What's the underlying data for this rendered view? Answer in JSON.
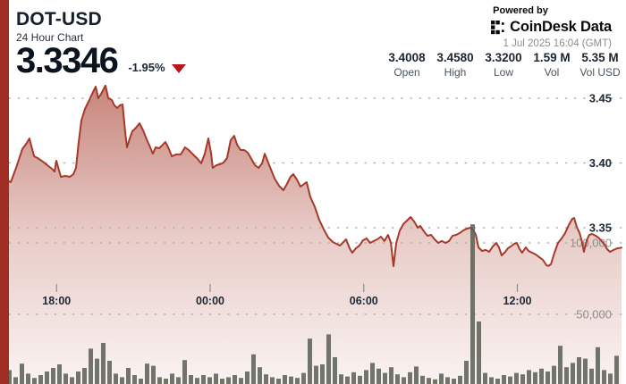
{
  "header": {
    "symbol": "DOT-USD",
    "subtitle": "24 Hour Chart",
    "price": "3.3346",
    "change_pct": "-1.95%",
    "change_direction": "down",
    "powered_by": "Powered by",
    "brand": "CoinDesk Data",
    "timestamp": "1 Jul 2025 16:04 (GMT)"
  },
  "stats": [
    {
      "value": "3.4008",
      "label": "Open"
    },
    {
      "value": "3.4580",
      "label": "High"
    },
    {
      "value": "3.3200",
      "label": "Low"
    },
    {
      "value": "1.59 M",
      "label": "Vol"
    },
    {
      "value": "5.35 M",
      "label": "Vol USD"
    }
  ],
  "colors": {
    "accent_red": "#9f2d23",
    "line_red": "#a63a2a",
    "volume_bar": "#595e52",
    "down_red": "#b7161b"
  },
  "chart_data": {
    "type": "area",
    "title": "DOT-USD 24 Hour Chart",
    "price_axis": {
      "ticks": [
        3.45,
        3.4,
        3.35
      ],
      "labels": [
        "3.45",
        "3.40",
        "3.35"
      ]
    },
    "volume_axis": {
      "ticks": [
        100000,
        50000
      ],
      "labels": [
        "100,000",
        "50,000"
      ]
    },
    "time_ticks": [
      {
        "t": 1.93,
        "label": "18:00"
      },
      {
        "t": 7.93,
        "label": "00:00"
      },
      {
        "t": 13.93,
        "label": "06:00"
      },
      {
        "t": 19.93,
        "label": "12:00"
      }
    ],
    "price_series": [
      [
        0.0,
        3.3866
      ],
      [
        0.14,
        3.3852
      ],
      [
        0.35,
        3.3962
      ],
      [
        0.59,
        3.4107
      ],
      [
        0.77,
        3.4155
      ],
      [
        0.87,
        3.419
      ],
      [
        1.05,
        3.4052
      ],
      [
        1.19,
        3.4038
      ],
      [
        1.4,
        3.401
      ],
      [
        1.57,
        3.3983
      ],
      [
        1.75,
        3.3955
      ],
      [
        1.85,
        3.3934
      ],
      [
        1.92,
        3.4017
      ],
      [
        2.03,
        3.3941
      ],
      [
        2.1,
        3.3893
      ],
      [
        2.27,
        3.39
      ],
      [
        2.45,
        3.3893
      ],
      [
        2.59,
        3.3914
      ],
      [
        2.69,
        3.3962
      ],
      [
        2.79,
        3.4155
      ],
      [
        2.9,
        3.4328
      ],
      [
        3.04,
        3.4417
      ],
      [
        3.21,
        3.4486
      ],
      [
        3.32,
        3.4534
      ],
      [
        3.46,
        3.459
      ],
      [
        3.56,
        3.45
      ],
      [
        3.67,
        3.4534
      ],
      [
        3.84,
        3.4597
      ],
      [
        3.95,
        3.45
      ],
      [
        4.09,
        3.4486
      ],
      [
        4.19,
        3.4445
      ],
      [
        4.3,
        3.4424
      ],
      [
        4.4,
        3.4445
      ],
      [
        4.51,
        3.4452
      ],
      [
        4.61,
        3.4238
      ],
      [
        4.68,
        3.4121
      ],
      [
        4.79,
        3.419
      ],
      [
        4.89,
        3.4245
      ],
      [
        5.03,
        3.4272
      ],
      [
        5.17,
        3.4307
      ],
      [
        5.31,
        3.4252
      ],
      [
        5.45,
        3.4183
      ],
      [
        5.59,
        3.4121
      ],
      [
        5.69,
        3.4072
      ],
      [
        5.8,
        3.4121
      ],
      [
        5.94,
        3.4114
      ],
      [
        6.08,
        3.4141
      ],
      [
        6.18,
        3.4162
      ],
      [
        6.29,
        3.4121
      ],
      [
        6.43,
        3.4052
      ],
      [
        6.6,
        3.4066
      ],
      [
        6.78,
        3.4066
      ],
      [
        6.95,
        3.4121
      ],
      [
        7.09,
        3.41
      ],
      [
        7.23,
        3.4072
      ],
      [
        7.41,
        3.4038
      ],
      [
        7.58,
        3.3997
      ],
      [
        7.72,
        3.4072
      ],
      [
        7.86,
        3.419
      ],
      [
        7.97,
        3.4072
      ],
      [
        8.03,
        3.3962
      ],
      [
        8.17,
        3.3983
      ],
      [
        8.31,
        3.399
      ],
      [
        8.45,
        3.4003
      ],
      [
        8.59,
        3.4038
      ],
      [
        8.73,
        3.4176
      ],
      [
        8.87,
        3.421
      ],
      [
        8.98,
        3.4141
      ],
      [
        9.12,
        3.41
      ],
      [
        9.26,
        3.41
      ],
      [
        9.4,
        3.4079
      ],
      [
        9.54,
        3.4031
      ],
      [
        9.68,
        3.3983
      ],
      [
        9.82,
        3.3962
      ],
      [
        9.96,
        3.3997
      ],
      [
        10.06,
        3.4072
      ],
      [
        10.17,
        3.4017
      ],
      [
        10.31,
        3.3948
      ],
      [
        10.45,
        3.3879
      ],
      [
        10.62,
        3.3824
      ],
      [
        10.79,
        3.379
      ],
      [
        10.93,
        3.3838
      ],
      [
        11.07,
        3.3893
      ],
      [
        11.18,
        3.3914
      ],
      [
        11.32,
        3.3872
      ],
      [
        11.46,
        3.3817
      ],
      [
        11.6,
        3.3838
      ],
      [
        11.7,
        3.3852
      ],
      [
        11.84,
        3.3741
      ],
      [
        12.02,
        3.3659
      ],
      [
        12.19,
        3.3562
      ],
      [
        12.37,
        3.3486
      ],
      [
        12.54,
        3.3424
      ],
      [
        12.72,
        3.339
      ],
      [
        12.86,
        3.3376
      ],
      [
        13.0,
        3.3362
      ],
      [
        13.14,
        3.339
      ],
      [
        13.24,
        3.341
      ],
      [
        13.38,
        3.3341
      ],
      [
        13.48,
        3.3307
      ],
      [
        13.62,
        3.3341
      ],
      [
        13.76,
        3.3362
      ],
      [
        13.9,
        3.3403
      ],
      [
        14.04,
        3.3417
      ],
      [
        14.18,
        3.3383
      ],
      [
        14.32,
        3.3397
      ],
      [
        14.46,
        3.341
      ],
      [
        14.6,
        3.3431
      ],
      [
        14.74,
        3.3397
      ],
      [
        14.88,
        3.3445
      ],
      [
        14.99,
        3.3383
      ],
      [
        15.09,
        3.3203
      ],
      [
        15.2,
        3.3383
      ],
      [
        15.34,
        3.3479
      ],
      [
        15.48,
        3.3528
      ],
      [
        15.62,
        3.3555
      ],
      [
        15.76,
        3.3583
      ],
      [
        15.9,
        3.3548
      ],
      [
        16.04,
        3.35
      ],
      [
        16.14,
        3.3514
      ],
      [
        16.28,
        3.3472
      ],
      [
        16.42,
        3.3438
      ],
      [
        16.56,
        3.3445
      ],
      [
        16.7,
        3.341
      ],
      [
        16.84,
        3.3383
      ],
      [
        16.98,
        3.3397
      ],
      [
        17.12,
        3.3383
      ],
      [
        17.26,
        3.3397
      ],
      [
        17.4,
        3.3438
      ],
      [
        17.54,
        3.3445
      ],
      [
        17.68,
        3.3459
      ],
      [
        17.82,
        3.3479
      ],
      [
        17.96,
        3.3493
      ],
      [
        18.1,
        3.35
      ],
      [
        18.2,
        3.3486
      ],
      [
        18.31,
        3.3445
      ],
      [
        18.41,
        3.3348
      ],
      [
        18.55,
        3.3321
      ],
      [
        18.69,
        3.3328
      ],
      [
        18.83,
        3.3314
      ],
      [
        18.97,
        3.3355
      ],
      [
        19.11,
        3.3383
      ],
      [
        19.21,
        3.3348
      ],
      [
        19.32,
        3.3286
      ],
      [
        19.46,
        3.3314
      ],
      [
        19.56,
        3.3341
      ],
      [
        19.67,
        3.3355
      ],
      [
        19.81,
        3.3376
      ],
      [
        19.91,
        3.3383
      ],
      [
        20.02,
        3.3334
      ],
      [
        20.12,
        3.3307
      ],
      [
        20.26,
        3.3348
      ],
      [
        20.37,
        3.3321
      ],
      [
        20.51,
        3.3307
      ],
      [
        20.65,
        3.3293
      ],
      [
        20.79,
        3.3272
      ],
      [
        20.93,
        3.3252
      ],
      [
        21.07,
        3.321
      ],
      [
        21.14,
        3.3205
      ],
      [
        21.24,
        3.3217
      ],
      [
        21.38,
        3.3307
      ],
      [
        21.52,
        3.3383
      ],
      [
        21.66,
        3.3417
      ],
      [
        21.8,
        3.3459
      ],
      [
        21.94,
        3.3521
      ],
      [
        22.08,
        3.3569
      ],
      [
        22.15,
        3.3576
      ],
      [
        22.25,
        3.3507
      ],
      [
        22.36,
        3.3459
      ],
      [
        22.46,
        3.339
      ],
      [
        22.53,
        3.3314
      ],
      [
        22.64,
        3.3403
      ],
      [
        22.74,
        3.3445
      ],
      [
        22.85,
        3.3452
      ],
      [
        22.99,
        3.3438
      ],
      [
        23.09,
        3.3424
      ],
      [
        23.2,
        3.3403
      ],
      [
        23.34,
        3.3369
      ],
      [
        23.44,
        3.3334
      ],
      [
        23.55,
        3.3314
      ],
      [
        23.69,
        3.3328
      ],
      [
        23.83,
        3.3341
      ],
      [
        24.0,
        3.3346
      ]
    ],
    "volume_series": [
      11000,
      6000,
      15500,
      8500,
      5500,
      7500,
      10000,
      12500,
      15000,
      8500,
      6000,
      10000,
      12500,
      26000,
      19000,
      30000,
      17500,
      8500,
      6000,
      12500,
      7500,
      5000,
      15500,
      14000,
      6000,
      5000,
      8500,
      6000,
      18000,
      7500,
      5500,
      7500,
      6000,
      8500,
      5000,
      6000,
      7500,
      5500,
      10000,
      22000,
      13000,
      8000,
      6000,
      5000,
      7500,
      6500,
      5500,
      9000,
      33000,
      14000,
      15000,
      36000,
      20000,
      8000,
      6500,
      9500,
      7000,
      11000,
      16000,
      12000,
      9000,
      13000,
      8000,
      6000,
      9500,
      13500,
      7000,
      5500,
      4500,
      8500,
      6000,
      5000,
      7000,
      17500,
      113000,
      45000,
      9000,
      6000,
      5000,
      7500,
      6500,
      9000,
      8000,
      11000,
      9500,
      12000,
      10000,
      14000,
      28000,
      13000,
      16000,
      20000,
      19000,
      12000,
      27000,
      11000,
      8500,
      21000
    ]
  }
}
